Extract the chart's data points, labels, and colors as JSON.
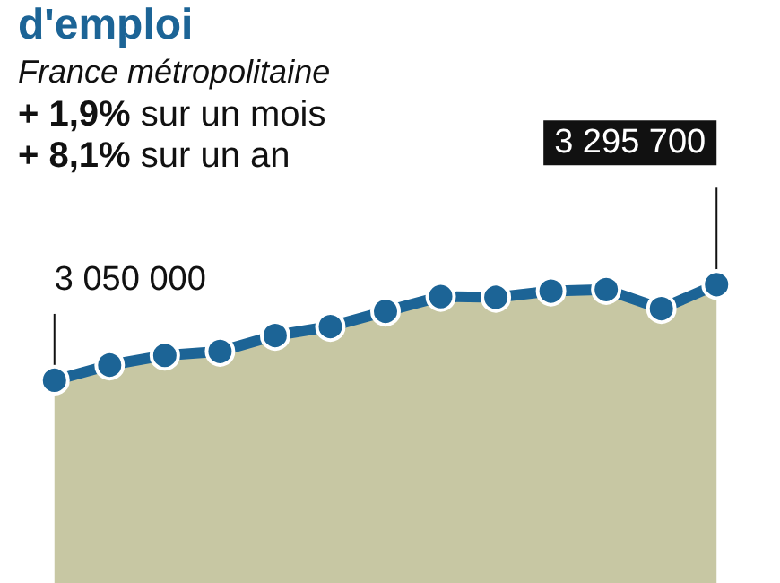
{
  "chart_data": {
    "type": "area",
    "title": "d'emploi",
    "subtitle": "France métropolitaine",
    "annotations": [
      "+ 1,9% sur un mois",
      "+ 8,1% sur un an"
    ],
    "categories": [
      null,
      null,
      null,
      null,
      null,
      null,
      null,
      null,
      null,
      null,
      null,
      null,
      null
    ],
    "series": [
      {
        "color": "#1c6496",
        "values": [
          3050000,
          3089000,
          3114000,
          3124000,
          3165000,
          3188000,
          3227000,
          3265000,
          3263000,
          3279000,
          3283000,
          3234000,
          3295700
        ],
        "value_labels": [
          "3 050 000",
          null,
          null,
          null,
          null,
          null,
          null,
          null,
          null,
          null,
          null,
          null,
          "3 295 700"
        ]
      }
    ],
    "marker": "circle",
    "tick_labels": false,
    "grid": false
  }
}
